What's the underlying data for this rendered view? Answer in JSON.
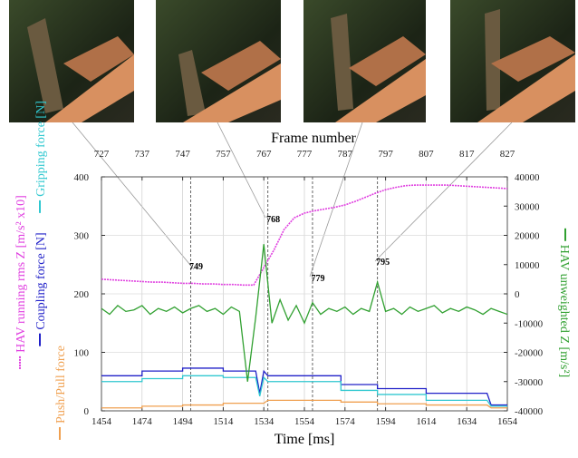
{
  "chart_data": {
    "type": "line",
    "xlabel": "Time [ms]",
    "x2label": "Frame number",
    "xlim": [
      1454,
      1654
    ],
    "xticks": [
      1454,
      1474,
      1494,
      1514,
      1534,
      1554,
      1574,
      1594,
      1614,
      1634,
      1654
    ],
    "x2lim": [
      727,
      827
    ],
    "x2ticks": [
      727,
      737,
      747,
      757,
      767,
      777,
      787,
      797,
      807,
      817,
      827
    ],
    "ylim": [
      0,
      400
    ],
    "yticks": [
      0,
      100,
      200,
      300,
      400
    ],
    "y2lim": [
      -40000,
      40000
    ],
    "y2ticks": [
      -40000,
      -30000,
      -20000,
      -10000,
      0,
      10000,
      20000,
      30000,
      40000
    ],
    "grid": true,
    "markers": [
      749,
      768,
      779,
      795
    ],
    "series": [
      {
        "name": "HAV running rms Z [m/s² x10]",
        "color": "#e040e0",
        "x": [
          1454,
          1459,
          1464,
          1469,
          1474,
          1479,
          1484,
          1489,
          1494,
          1499,
          1504,
          1509,
          1514,
          1519,
          1524,
          1529,
          1534,
          1539,
          1544,
          1549,
          1554,
          1559,
          1564,
          1569,
          1574,
          1579,
          1584,
          1589,
          1594,
          1599,
          1604,
          1609,
          1614,
          1619,
          1624,
          1629,
          1634,
          1639,
          1644,
          1649,
          1654
        ],
        "values": [
          225,
          224,
          223,
          222,
          221,
          220,
          220,
          219,
          218,
          218,
          217,
          217,
          216,
          216,
          215,
          215,
          245,
          275,
          310,
          330,
          338,
          342,
          345,
          348,
          352,
          358,
          365,
          372,
          378,
          382,
          385,
          386,
          386,
          386,
          386,
          385,
          384,
          383,
          382,
          381,
          380
        ]
      },
      {
        "name": "Coupling force [N]",
        "color": "#2020c8",
        "x": [
          1454,
          1474,
          1474,
          1494,
          1494,
          1514,
          1514,
          1530,
          1532,
          1534,
          1536,
          1572,
          1572,
          1590,
          1590,
          1614,
          1614,
          1644,
          1646,
          1654
        ],
        "values": [
          60,
          60,
          68,
          68,
          73,
          73,
          68,
          68,
          30,
          68,
          60,
          60,
          45,
          45,
          38,
          38,
          30,
          30,
          10,
          10
        ]
      },
      {
        "name": "Gripping force [N]",
        "color": "#30c8d0",
        "x": [
          1454,
          1474,
          1474,
          1494,
          1494,
          1514,
          1514,
          1530,
          1532,
          1534,
          1536,
          1572,
          1572,
          1590,
          1590,
          1614,
          1614,
          1644,
          1646,
          1654
        ],
        "values": [
          50,
          50,
          55,
          55,
          60,
          60,
          57,
          57,
          25,
          57,
          50,
          50,
          35,
          35,
          28,
          28,
          18,
          18,
          8,
          8
        ]
      },
      {
        "name": "Push/Pull force",
        "color": "#f0a050",
        "x": [
          1454,
          1474,
          1474,
          1494,
          1494,
          1514,
          1514,
          1530,
          1532,
          1534,
          1536,
          1572,
          1572,
          1590,
          1590,
          1614,
          1614,
          1644,
          1646,
          1654
        ],
        "values": [
          5,
          5,
          8,
          8,
          10,
          10,
          13,
          13,
          13,
          13,
          18,
          18,
          15,
          15,
          12,
          12,
          10,
          10,
          5,
          5
        ]
      },
      {
        "name": "HAV unweighted Z [m/s²]",
        "color": "#30a030",
        "axis": "y2",
        "x": [
          1454,
          1458,
          1462,
          1466,
          1470,
          1474,
          1478,
          1482,
          1486,
          1490,
          1494,
          1498,
          1502,
          1506,
          1510,
          1514,
          1518,
          1522,
          1526,
          1530,
          1534,
          1538,
          1542,
          1546,
          1550,
          1554,
          1558,
          1562,
          1566,
          1570,
          1574,
          1578,
          1582,
          1586,
          1590,
          1594,
          1598,
          1602,
          1606,
          1610,
          1614,
          1618,
          1622,
          1626,
          1630,
          1634,
          1638,
          1642,
          1646,
          1650,
          1654
        ],
        "values": [
          -5000,
          -7000,
          -4000,
          -6000,
          -5500,
          -4000,
          -7000,
          -5000,
          -6000,
          -4500,
          -6500,
          -5000,
          -4000,
          -6000,
          -5000,
          -7000,
          -4500,
          -6000,
          -30000,
          -8000,
          17000,
          -10000,
          -2000,
          -9000,
          -4000,
          -10000,
          -3000,
          -7000,
          -5000,
          -6000,
          -4500,
          -7000,
          -5000,
          -6000,
          4000,
          -6000,
          -5000,
          -7000,
          -4500,
          -6000,
          -5000,
          -4000,
          -6500,
          -5000,
          -6000,
          -4500,
          -5500,
          -7000,
          -5000,
          -6000,
          -7000
        ]
      }
    ]
  }
}
